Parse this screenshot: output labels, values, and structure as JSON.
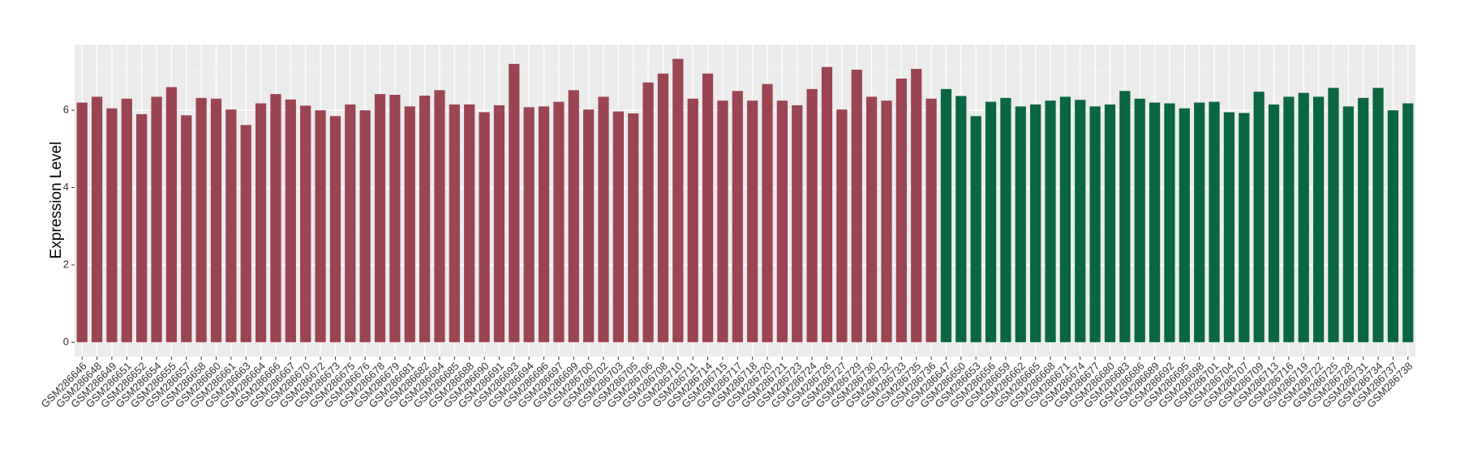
{
  "chart_data": {
    "type": "bar",
    "y_label": "Expression Level",
    "categories": [
      "GSM286646",
      "GSM286648",
      "GSM286649",
      "GSM286651",
      "GSM286652",
      "GSM286654",
      "GSM286655",
      "GSM286657",
      "GSM286658",
      "GSM286660",
      "GSM286661",
      "GSM286663",
      "GSM286664",
      "GSM286666",
      "GSM286667",
      "GSM286670",
      "GSM286672",
      "GSM286673",
      "GSM286675",
      "GSM286676",
      "GSM286678",
      "GSM286679",
      "GSM286681",
      "GSM286682",
      "GSM286684",
      "GSM286685",
      "GSM286688",
      "GSM286690",
      "GSM286691",
      "GSM286693",
      "GSM286694",
      "GSM286696",
      "GSM286697",
      "GSM286699",
      "GSM286700",
      "GSM286702",
      "GSM286703",
      "GSM286705",
      "GSM286706",
      "GSM286708",
      "GSM286710",
      "GSM286711",
      "GSM286714",
      "GSM286715",
      "GSM286717",
      "GSM286718",
      "GSM286720",
      "GSM286721",
      "GSM286723",
      "GSM286724",
      "GSM286726",
      "GSM286727",
      "GSM286729",
      "GSM286730",
      "GSM286732",
      "GSM286733",
      "GSM286735",
      "GSM286736",
      "GSM286647",
      "GSM286650",
      "GSM286653",
      "GSM286656",
      "GSM286659",
      "GSM286662",
      "GSM286665",
      "GSM286668",
      "GSM286671",
      "GSM286674",
      "GSM286677",
      "GSM286680",
      "GSM286683",
      "GSM286686",
      "GSM286689",
      "GSM286692",
      "GSM286695",
      "GSM286698",
      "GSM286701",
      "GSM286704",
      "GSM286707",
      "GSM286709",
      "GSM286713",
      "GSM286716",
      "GSM286719",
      "GSM286722",
      "GSM286725",
      "GSM286728",
      "GSM286731",
      "GSM286734",
      "GSM286737",
      "GSM286738"
    ],
    "values": [
      6.2,
      6.35,
      6.05,
      6.3,
      5.9,
      6.35,
      6.6,
      5.87,
      6.32,
      6.3,
      6.02,
      5.62,
      6.18,
      6.42,
      6.28,
      6.12,
      6.0,
      5.85,
      6.15,
      6.0,
      6.42,
      6.4,
      6.1,
      6.38,
      6.52,
      6.15,
      6.15,
      5.95,
      6.13,
      7.2,
      6.08,
      6.1,
      6.22,
      6.52,
      6.02,
      6.35,
      5.97,
      5.92,
      6.72,
      6.95,
      7.33,
      6.3,
      6.95,
      6.25,
      6.5,
      6.25,
      6.68,
      6.25,
      6.13,
      6.55,
      7.12,
      6.02,
      7.05,
      6.35,
      6.25,
      6.82,
      7.07,
      6.3,
      6.55,
      6.37,
      5.85,
      6.22,
      6.32,
      6.1,
      6.15,
      6.25,
      6.35,
      6.27,
      6.1,
      6.15,
      6.5,
      6.3,
      6.2,
      6.18,
      6.05,
      6.2,
      6.22,
      5.95,
      5.93,
      6.48,
      6.15,
      6.35,
      6.45,
      6.35,
      6.58,
      6.1,
      6.32,
      6.58,
      6.0,
      6.18
    ],
    "colors": [
      "#9b4452",
      "#9b4452",
      "#9b4452",
      "#9b4452",
      "#9b4452",
      "#9b4452",
      "#9b4452",
      "#9b4452",
      "#9b4452",
      "#9b4452",
      "#9b4452",
      "#9b4452",
      "#9b4452",
      "#9b4452",
      "#9b4452",
      "#9b4452",
      "#9b4452",
      "#9b4452",
      "#9b4452",
      "#9b4452",
      "#9b4452",
      "#9b4452",
      "#9b4452",
      "#9b4452",
      "#9b4452",
      "#9b4452",
      "#9b4452",
      "#9b4452",
      "#9b4452",
      "#9b4452",
      "#9b4452",
      "#9b4452",
      "#9b4452",
      "#9b4452",
      "#9b4452",
      "#9b4452",
      "#9b4452",
      "#9b4452",
      "#9b4452",
      "#9b4452",
      "#9b4452",
      "#9b4452",
      "#9b4452",
      "#9b4452",
      "#9b4452",
      "#9b4452",
      "#9b4452",
      "#9b4452",
      "#9b4452",
      "#9b4452",
      "#9b4452",
      "#9b4452",
      "#9b4452",
      "#9b4452",
      "#9b4452",
      "#9b4452",
      "#9b4452",
      "#9b4452",
      "#0a6640",
      "#0a6640",
      "#0a6640",
      "#0a6640",
      "#0a6640",
      "#0a6640",
      "#0a6640",
      "#0a6640",
      "#0a6640",
      "#0a6640",
      "#0a6640",
      "#0a6640",
      "#0a6640",
      "#0a6640",
      "#0a6640",
      "#0a6640",
      "#0a6640",
      "#0a6640",
      "#0a6640",
      "#0a6640",
      "#0a6640",
      "#0a6640",
      "#0a6640",
      "#0a6640",
      "#0a6640",
      "#0a6640",
      "#0a6640",
      "#0a6640",
      "#0a6640",
      "#0a6640",
      "#0a6640",
      "#0a6640"
    ],
    "ylim": [
      -0.37,
      7.7
    ],
    "yticks": [
      0,
      2,
      4,
      6
    ],
    "grid": true
  }
}
